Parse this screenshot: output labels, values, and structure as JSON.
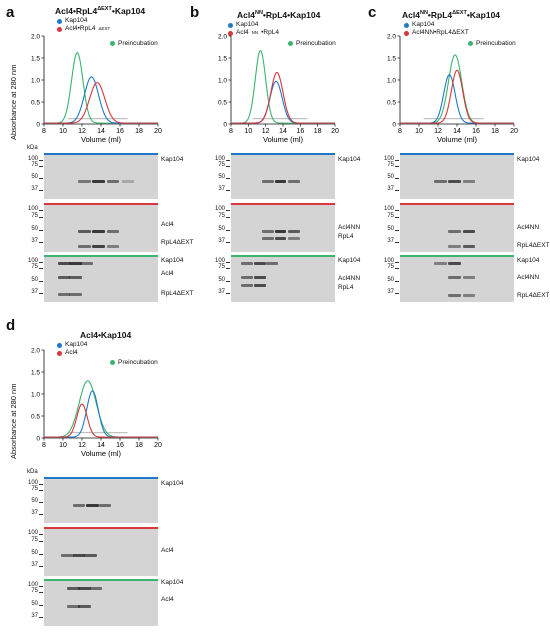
{
  "colors": {
    "kap104": "#1f78c8",
    "complex": "#d9363e",
    "preincubation": "#3cb46e",
    "gel_bg": "#d4d4d4",
    "band_dark": "#3a3a3a"
  },
  "panels": {
    "a": {
      "label": "a",
      "title": "Acl4•RpL4",
      "title_sup": "ΔEXT",
      "title_suffix": "•Kap104",
      "legend": [
        {
          "name": "Kap104",
          "color": "#1f78c8"
        },
        {
          "name": "Acl4•RpL4",
          "sup": "ΔEXT",
          "color": "#d9363e"
        }
      ],
      "preincubation": "Preincubation",
      "gels": {
        "kda": "kDa",
        "top": {
          "markers": [
            "100",
            "75",
            "50",
            "37"
          ],
          "labels": [
            "Kap104"
          ]
        },
        "mid": {
          "markers": [
            "100",
            "75",
            "50",
            "37"
          ],
          "labels": [
            "Acl4",
            "RpL4ΔEXT"
          ]
        },
        "bot": {
          "markers": [
            "100",
            "75",
            "50",
            "37"
          ],
          "labels": [
            "Kap104",
            "Acl4",
            "RpL4ΔEXT"
          ]
        }
      }
    },
    "b": {
      "label": "b",
      "title": "Acl4",
      "title_sup": "NN",
      "title_suffix": "•RpL4•Kap104",
      "legend": [
        {
          "name": "Kap104",
          "color": "#1f78c8"
        },
        {
          "name": "Acl4",
          "sup": "NN",
          "name2": "•RpL4",
          "color": "#d9363e"
        }
      ],
      "preincubation": "Preincubation",
      "gels": {
        "top": {
          "markers": [
            "100",
            "75",
            "50",
            "37"
          ],
          "labels": [
            "Kap104"
          ]
        },
        "mid": {
          "markers": [
            "100",
            "75",
            "50",
            "37"
          ],
          "labels": [
            "Acl4NN",
            "RpL4"
          ]
        },
        "bot": {
          "markers": [
            "100",
            "75",
            "50",
            "37"
          ],
          "labels": [
            "Kap104",
            "Acl4NN",
            "RpL4"
          ]
        }
      }
    },
    "c": {
      "label": "c",
      "title": "Acl4",
      "title_sup": "NN",
      "title_suffix": "•RpL4",
      "title_sup2": "ΔEXT",
      "title_suffix2": "•Kap104",
      "legend": [
        {
          "name": "Kap104",
          "color": "#1f78c8"
        },
        {
          "name": "Acl4NN•RpL4ΔEXT",
          "color": "#d9363e"
        }
      ],
      "preincubation": "Preincubation",
      "gels": {
        "top": {
          "markers": [
            "100",
            "75",
            "50",
            "37"
          ],
          "labels": [
            "Kap104"
          ]
        },
        "mid": {
          "markers": [
            "100",
            "75",
            "50",
            "37"
          ],
          "labels": [
            "Acl4NN",
            "RpL4ΔEXT"
          ]
        },
        "bot": {
          "markers": [
            "100",
            "75",
            "50",
            "37"
          ],
          "labels": [
            "Kap104",
            "Acl4NN",
            "RpL4ΔEXT"
          ]
        }
      }
    },
    "d": {
      "label": "d",
      "title": "Acl4•Kap104",
      "legend": [
        {
          "name": "Kap104",
          "color": "#1f78c8"
        },
        {
          "name": "Acl4",
          "color": "#d9363e"
        }
      ],
      "preincubation": "Preincubation",
      "gels": {
        "kda": "kDa",
        "top": {
          "markers": [
            "100",
            "75",
            "50",
            "37"
          ],
          "labels": [
            "Kap104"
          ]
        },
        "mid": {
          "markers": [
            "100",
            "75",
            "50",
            "37"
          ],
          "labels": [
            "Acl4"
          ]
        },
        "bot": {
          "markers": [
            "100",
            "75",
            "50",
            "37"
          ],
          "labels": [
            "Kap104",
            "Acl4"
          ]
        }
      }
    }
  },
  "axis": {
    "ylabel": "Absorbance at 280 nm",
    "xlabel": "Volume (ml)",
    "yticks": [
      "0",
      "0.5",
      "1.0",
      "1.5",
      "2.0"
    ],
    "xticks": [
      "8",
      "10",
      "12",
      "14",
      "16",
      "18",
      "20"
    ]
  },
  "chart_data": [
    {
      "type": "line",
      "panel": "a",
      "xlim": [
        8,
        20
      ],
      "ylim": [
        0,
        2.0
      ],
      "series": [
        {
          "name": "Kap104",
          "color": "#1f78c8",
          "peak_x": 13.0,
          "peak_y": 1.05,
          "width": 0.75
        },
        {
          "name": "Acl4•RpL4ΔEXT",
          "color": "#d9363e",
          "peak_x": 13.6,
          "peak_y": 0.92,
          "width": 0.8
        },
        {
          "name": "Preincubation",
          "color": "#3cb46e",
          "peak_x": 11.5,
          "peak_y": 1.6,
          "width": 0.6
        }
      ]
    },
    {
      "type": "line",
      "panel": "b",
      "xlim": [
        8,
        20
      ],
      "ylim": [
        0,
        2.0
      ],
      "series": [
        {
          "name": "Kap104",
          "color": "#1f78c8",
          "peak_x": 13.2,
          "peak_y": 0.95,
          "width": 0.7
        },
        {
          "name": "Acl4NN•RpL4",
          "color": "#d9363e",
          "peak_x": 13.3,
          "peak_y": 1.15,
          "width": 0.7
        },
        {
          "name": "Preincubation",
          "color": "#3cb46e",
          "peak_x": 11.4,
          "peak_y": 1.65,
          "width": 0.6
        }
      ]
    },
    {
      "type": "line",
      "panel": "c",
      "xlim": [
        8,
        20
      ],
      "ylim": [
        0,
        2.0
      ],
      "series": [
        {
          "name": "Kap104",
          "color": "#1f78c8",
          "peak_x": 13.2,
          "peak_y": 1.1,
          "width": 0.6
        },
        {
          "name": "Acl4NN•RpL4ΔEXT",
          "color": "#d9363e",
          "peak_x": 14.0,
          "peak_y": 1.2,
          "width": 0.6
        },
        {
          "name": "Preincubation",
          "color": "#3cb46e",
          "peak_x": 13.8,
          "peak_y": 1.55,
          "width": 0.7
        }
      ]
    },
    {
      "type": "line",
      "panel": "d",
      "xlim": [
        8,
        20
      ],
      "ylim": [
        0,
        2.0
      ],
      "series": [
        {
          "name": "Kap104",
          "color": "#1f78c8",
          "peak_x": 13.1,
          "peak_y": 1.05,
          "width": 0.6
        },
        {
          "name": "Acl4",
          "color": "#d9363e",
          "peak_x": 12.0,
          "peak_y": 0.75,
          "width": 0.55
        },
        {
          "name": "Preincubation",
          "color": "#3cb46e",
          "peak_x": 12.6,
          "peak_y": 1.28,
          "width": 0.9
        }
      ]
    }
  ]
}
